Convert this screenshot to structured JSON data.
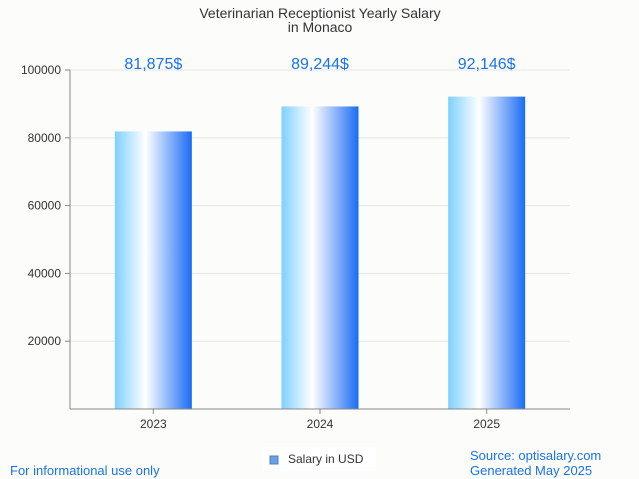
{
  "chart_data": {
    "type": "bar",
    "title_lines": [
      "Veterinarian Receptionist Yearly Salary",
      "in Monaco"
    ],
    "categories": [
      "2023",
      "2024",
      "2025"
    ],
    "series": [
      {
        "name": "Salary in USD",
        "values": [
          81875,
          89244,
          92146
        ]
      }
    ],
    "value_labels": [
      "81,875$",
      "89,244$",
      "92,146$"
    ],
    "y_ticks": [
      "20000",
      "40000",
      "60000",
      "80000",
      "100000"
    ],
    "ylim": [
      0,
      100000
    ],
    "grid": true,
    "legend_position": "bottom-center"
  },
  "footer": {
    "note": "For informational use only",
    "source": "Source: optisalary.com",
    "generated": "Generated May 2025"
  },
  "colors": {
    "label": "#1a73e8",
    "bar_light": "#c8ecff",
    "bar_mid": "#7fd0ff",
    "bar_dark": "#1a6cf5",
    "grid": "#e6e6e6",
    "axis": "#888888"
  }
}
